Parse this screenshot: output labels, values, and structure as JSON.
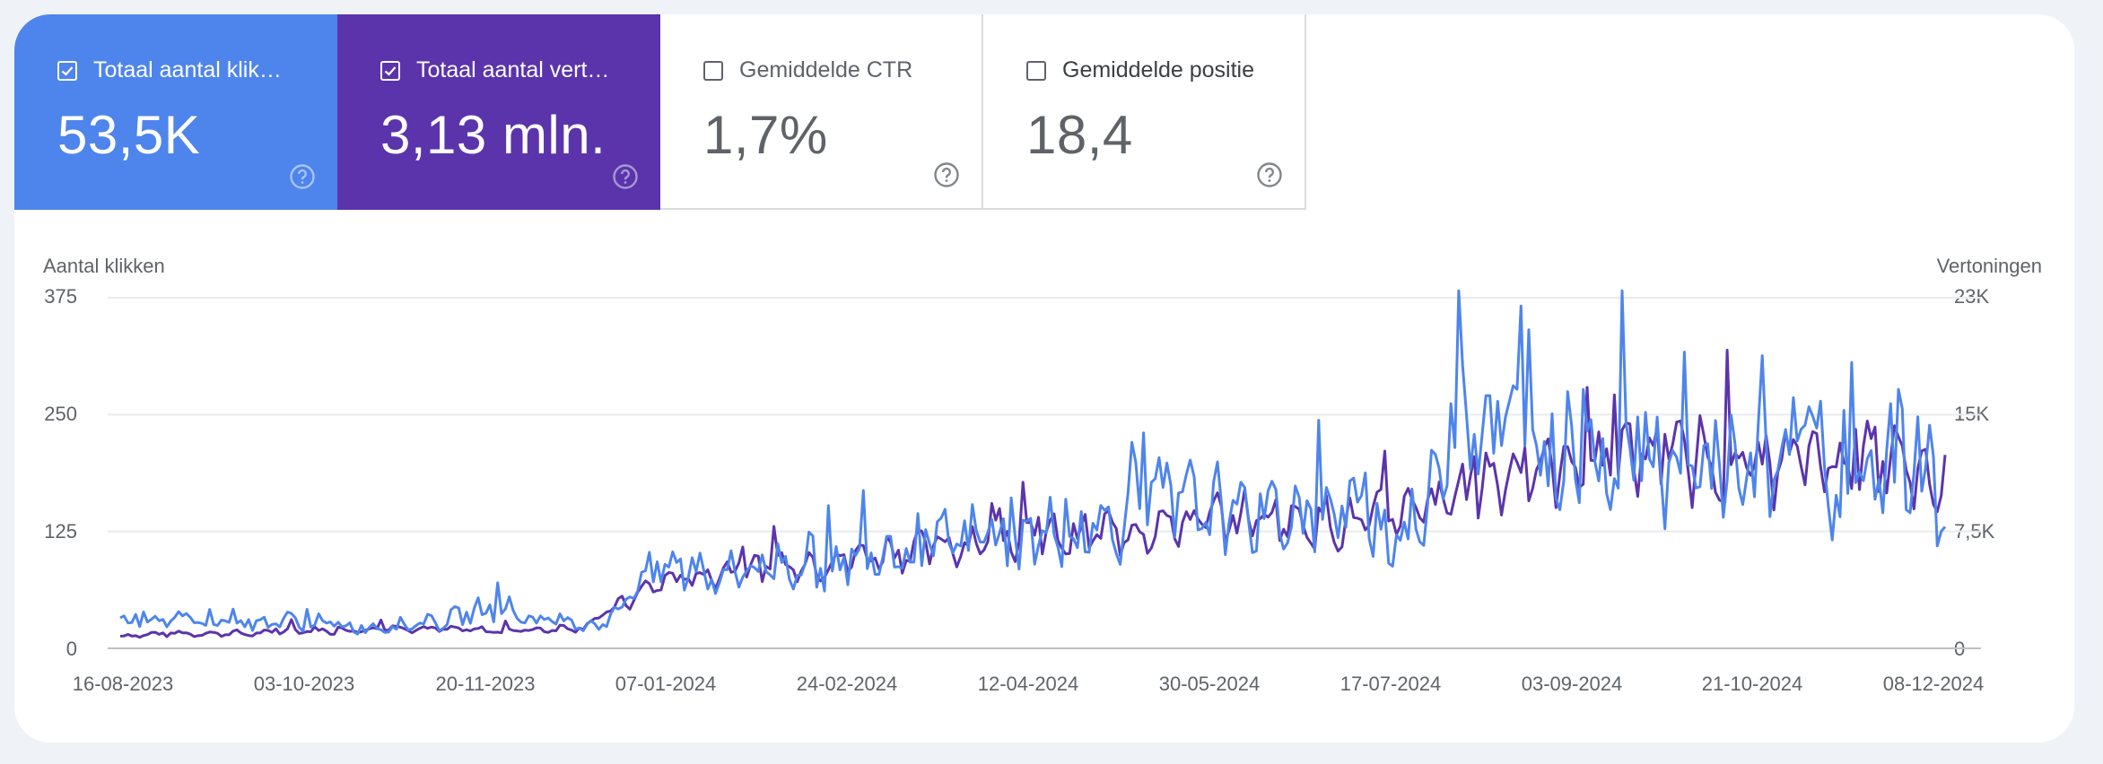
{
  "metrics": [
    {
      "label": "Totaal aantal klik…",
      "value": "53,5K",
      "checked": true
    },
    {
      "label": "Totaal aantal vert…",
      "value": "3,13 mln.",
      "checked": true
    },
    {
      "label": "Gemiddelde CTR",
      "value": "1,7%",
      "checked": false
    },
    {
      "label": "Gemiddelde positie",
      "value": "18,4",
      "checked": false
    }
  ],
  "chart_data": {
    "type": "line",
    "left_axis_label": "Aantal klikken",
    "right_axis_label": "Vertoningen",
    "left_ticks": [
      "375",
      "250",
      "125",
      "0"
    ],
    "right_ticks": [
      "23K",
      "15K",
      "7,5K",
      "0"
    ],
    "x_ticks": [
      "16-08-2023",
      "03-10-2023",
      "20-11-2023",
      "07-01-2024",
      "24-02-2024",
      "12-04-2024",
      "30-05-2024",
      "17-07-2024",
      "03-09-2024",
      "21-10-2024",
      "08-12-2024"
    ],
    "ylim_left": [
      0,
      375
    ],
    "ylim_right": [
      0,
      23000
    ],
    "colors": {
      "clicks": "#4e85ec",
      "impressions": "#5b34ac"
    },
    "series": [
      {
        "name": "Totaal aantal klikken",
        "axis": "left",
        "weekly_values": [
          28,
          35,
          30,
          27,
          33,
          26,
          30,
          28,
          25,
          22,
          24,
          25,
          30,
          40,
          45,
          32,
          28,
          25,
          30,
          75,
          85,
          88,
          80,
          85,
          90,
          95,
          90,
          100,
          110,
          105,
          110,
          115,
          120,
          110,
          125,
          120,
          135,
          140,
          160,
          150,
          155,
          135,
          145,
          150,
          140,
          140,
          130,
          125,
          140,
          280,
          250,
          230,
          220,
          210,
          200,
          220,
          240,
          180,
          170,
          200,
          190,
          180,
          250,
          150,
          180,
          210,
          200,
          160
        ]
      },
      {
        "name": "Totaal aantal vertoningen",
        "axis": "right",
        "weekly_values": [
          800,
          900,
          1000,
          950,
          1000,
          950,
          1100,
          1200,
          1100,
          1300,
          1400,
          1300,
          1250,
          1200,
          1100,
          1200,
          1300,
          1400,
          2500,
          3500,
          4500,
          4600,
          5000,
          5200,
          5400,
          5600,
          5700,
          6000,
          6300,
          6500,
          6700,
          6900,
          7100,
          7000,
          7200,
          7400,
          7600,
          7800,
          8000,
          8200,
          8400,
          8500,
          8700,
          8500,
          8300,
          8200,
          8400,
          8800,
          9000,
          10000,
          11000,
          11500,
          11800,
          12000,
          12200,
          12500,
          12800,
          12400,
          12000,
          12300,
          12200,
          11800,
          13000,
          12000,
          12300,
          12500,
          11000,
          9800
        ]
      }
    ]
  }
}
